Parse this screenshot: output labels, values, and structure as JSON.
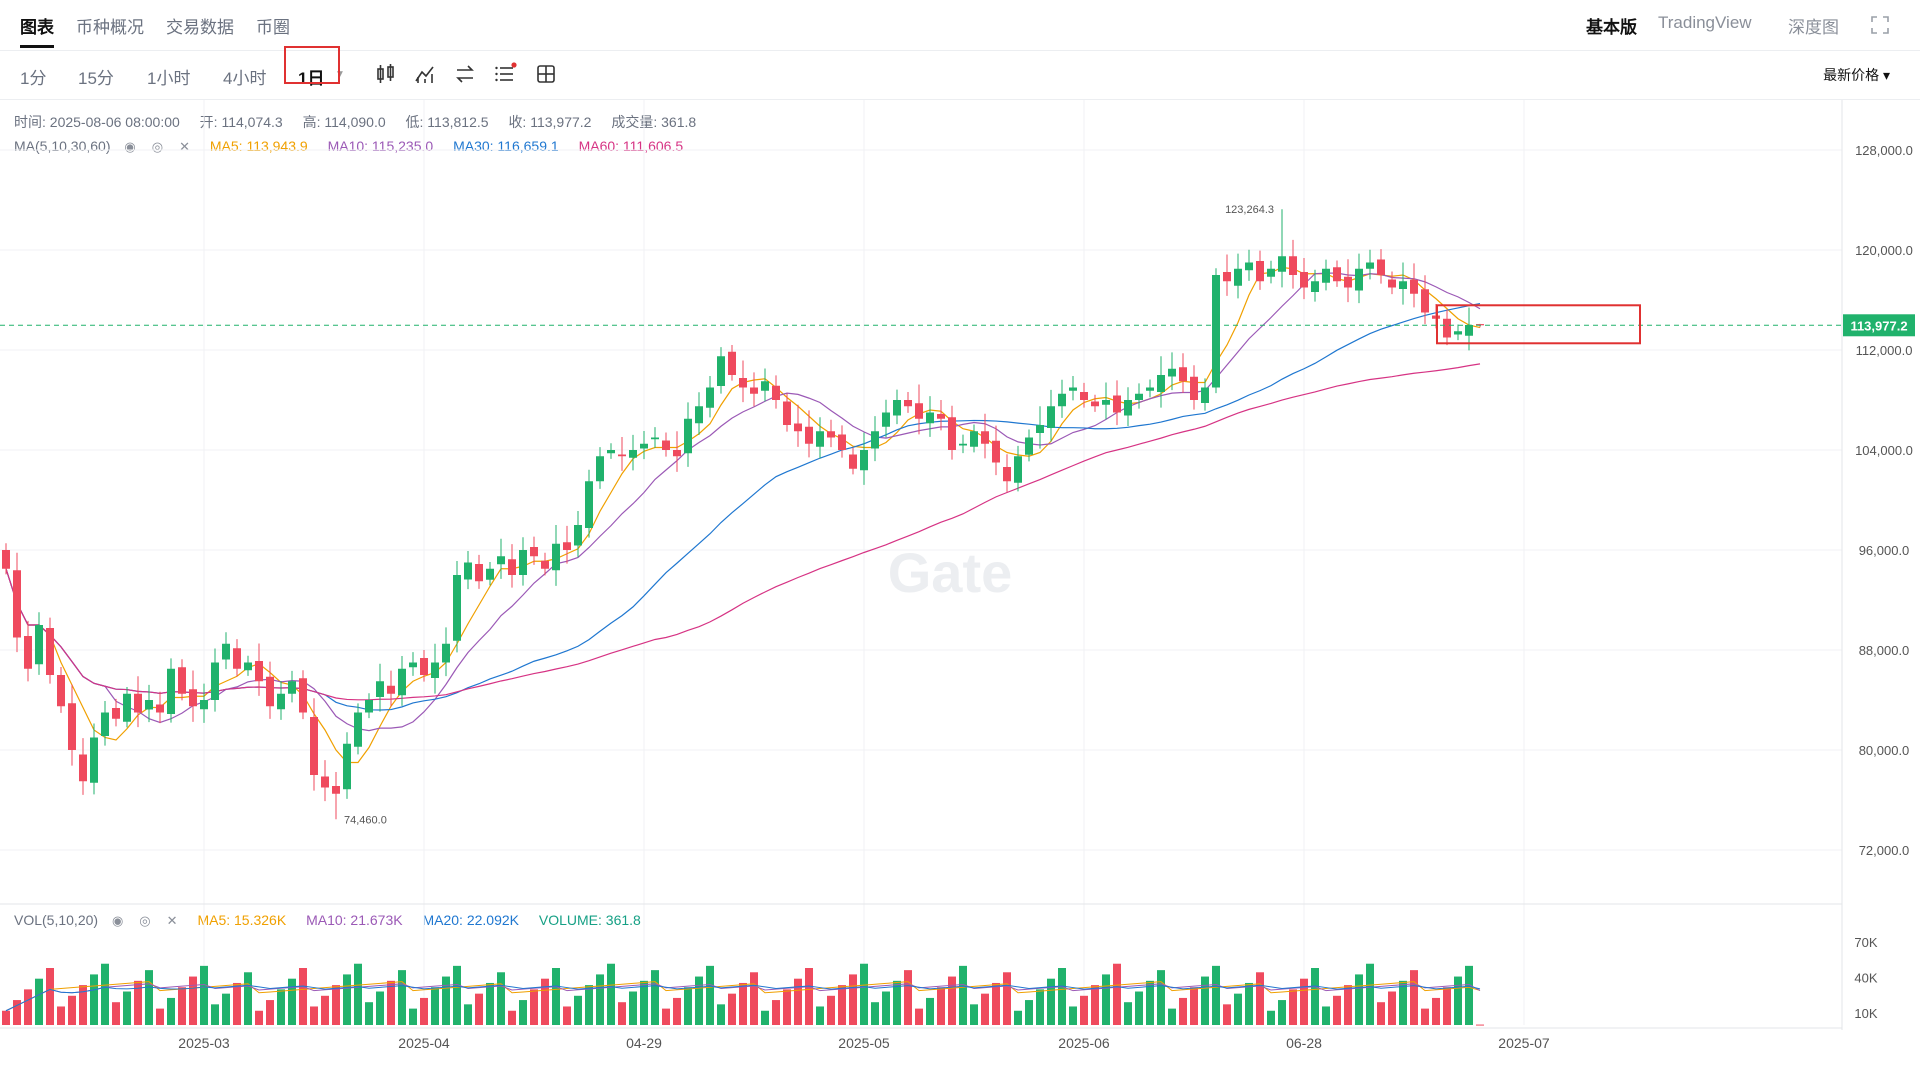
{
  "header": {
    "tabs": [
      {
        "label": "图表",
        "active": true
      },
      {
        "label": "币种概况",
        "active": false
      },
      {
        "label": "交易数据",
        "active": false
      },
      {
        "label": "币圈",
        "active": false
      }
    ],
    "views": [
      {
        "label": "基本版",
        "active": true
      },
      {
        "label": "TradingView",
        "active": false
      },
      {
        "label": "深度图",
        "active": false
      }
    ],
    "fullscreen_icon": "expand-icon"
  },
  "toolbar": {
    "timeframes": [
      {
        "label": "1分",
        "active": false
      },
      {
        "label": "15分",
        "active": false
      },
      {
        "label": "1小时",
        "active": false
      },
      {
        "label": "4小时",
        "active": false
      },
      {
        "label": "1日",
        "active": true
      }
    ],
    "icons": [
      "candle-type-icon",
      "indicator-icon",
      "swap-icon",
      "settings-list-icon",
      "layout-icon"
    ],
    "price_select": "最新价格"
  },
  "info": {
    "time": "时间: 2025-08-06 08:00:00",
    "open": "开: 114,074.3",
    "high": "高: 114,090.0",
    "low": "低: 113,812.5",
    "close": "收: 113,977.2",
    "volume": "成交量: 361.8",
    "ma_label": "MA(5,10,30,60)",
    "ma5": "MA5: 113,943.9",
    "ma10": "MA10: 115,235.0",
    "ma30": "MA30: 116,659.1",
    "ma60": "MA60: 111,606.5",
    "vol_label": "VOL(5,10,20)",
    "vol_ma5": "MA5: 15.326K",
    "vol_ma10": "MA10: 21.673K",
    "vol_ma20": "MA20: 22.092K",
    "vol_volume": "VOLUME: 361.8"
  },
  "watermark": "Gate",
  "chart_data": {
    "type": "candlestick",
    "current_price": "113,977.2",
    "high_marker": "123,264.3",
    "low_marker": "74,460.0",
    "y_ticks": [
      "128,000.0",
      "120,000.0",
      "112,000.0",
      "104,000.0",
      "96,000.0",
      "88,000.0",
      "80,000.0",
      "72,000.0"
    ],
    "y_values": [
      128000,
      120000,
      112000,
      104000,
      96000,
      88000,
      80000,
      72000
    ],
    "vol_ticks": [
      "70K",
      "40K",
      "10K"
    ],
    "vol_tick_values": [
      70000,
      40000,
      10000
    ],
    "x_ticks": [
      {
        "label": "2025-03",
        "index": 18
      },
      {
        "label": "2025-04",
        "index": 38
      },
      {
        "label": "04-29",
        "index": 58
      },
      {
        "label": "2025-05",
        "index": 78
      },
      {
        "label": "2025-06",
        "index": 98
      },
      {
        "label": "06-28",
        "index": 118
      },
      {
        "label": "2025-07",
        "index": 138
      }
    ],
    "closes": [
      94500,
      89000,
      86500,
      90000,
      86000,
      83500,
      80000,
      77500,
      81000,
      83000,
      82500,
      84500,
      83000,
      84000,
      83000,
      86500,
      84500,
      83500,
      84000,
      87000,
      88500,
      86500,
      87000,
      85500,
      83500,
      84500,
      85500,
      83000,
      78000,
      77000,
      76500,
      80500,
      83000,
      84000,
      85500,
      84500,
      86500,
      87000,
      86000,
      87000,
      88500,
      94000,
      95000,
      93500,
      94500,
      95500,
      94000,
      96000,
      95500,
      94500,
      96500,
      96000,
      98000,
      101500,
      103500,
      104000,
      103500,
      104000,
      104500,
      105000,
      104000,
      103500,
      106500,
      107500,
      109000,
      111500,
      110000,
      109000,
      108500,
      109500,
      108000,
      106000,
      105500,
      104500,
      105500,
      105000,
      104000,
      102500,
      104000,
      105500,
      107000,
      108000,
      107500,
      106500,
      107000,
      106500,
      104000,
      104500,
      105500,
      104500,
      103000,
      101500,
      103500,
      105000,
      106000,
      107500,
      108500,
      109000,
      108000,
      107500,
      108000,
      107000,
      108000,
      108500,
      109000,
      110000,
      110500,
      109500,
      108000,
      109000,
      118000,
      117500,
      118500,
      119000,
      117500,
      118500,
      119500,
      118000,
      117000,
      117500,
      118500,
      117500,
      117000,
      118500,
      119000,
      118000,
      117000,
      117500,
      116500,
      115000,
      114500,
      113000,
      113500,
      114000,
      113977
    ],
    "ma_series": {
      "MA5": "orange",
      "MA10": "purple",
      "MA30": "blue",
      "MA60": "pink"
    },
    "colors": {
      "up": "#20b26c",
      "down": "#ef4a5e"
    }
  }
}
